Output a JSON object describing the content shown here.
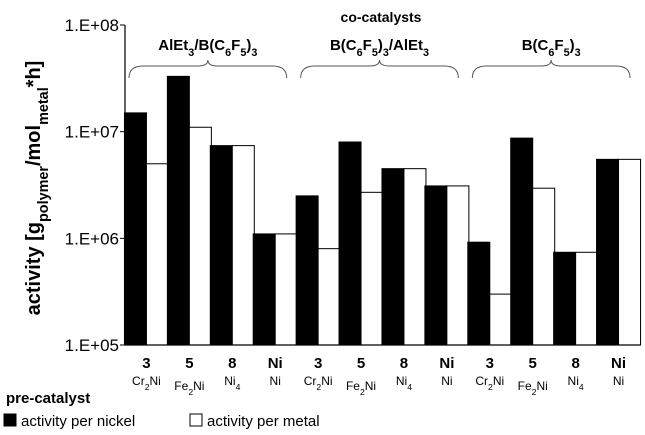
{
  "chart_data": {
    "type": "bar",
    "scale": "log",
    "ylim": [
      100000,
      100000000
    ],
    "y_ticks": [
      "1.E+05",
      "1.E+06",
      "1.E+07",
      "1.E+08"
    ],
    "ylabel": "activity [gpolymer/molmetal*h]",
    "ylabel_parts": {
      "main": "activity [g",
      "sub1": "polymer",
      "mid": "/mol",
      "sub2": "metal",
      "end": "*h]"
    },
    "cocatalyst_title": "co-catalysts",
    "groups": [
      {
        "label_parts": [
          "AlEt",
          "3",
          "/B(C",
          "6",
          "F",
          "5",
          ")",
          "3"
        ]
      },
      {
        "label_parts": [
          "B(C",
          "6",
          "F",
          "5",
          ")",
          "3",
          "/AlEt",
          "3"
        ]
      },
      {
        "label_parts": [
          "B(C",
          "6",
          "F",
          "5",
          ")",
          "3"
        ]
      }
    ],
    "precatalyst_label": "pre-catalyst",
    "categories": [
      {
        "id": "3",
        "base": "Cr",
        "sub": "2",
        "tail": "Ni"
      },
      {
        "id": "5",
        "base": "Fe",
        "sub": "2",
        "tail": "Ni"
      },
      {
        "id": "8",
        "base": "Ni",
        "sub": "4",
        "tail": ""
      },
      {
        "id": "Ni",
        "base": "Ni",
        "sub": "",
        "tail": ""
      },
      {
        "id": "3",
        "base": "Cr",
        "sub": "2",
        "tail": "Ni"
      },
      {
        "id": "5",
        "base": "Fe",
        "sub": "2",
        "tail": "Ni"
      },
      {
        "id": "8",
        "base": "Ni",
        "sub": "4",
        "tail": ""
      },
      {
        "id": "Ni",
        "base": "Ni",
        "sub": "",
        "tail": ""
      },
      {
        "id": "3",
        "base": "Cr",
        "sub": "2",
        "tail": "Ni"
      },
      {
        "id": "5",
        "base": "Fe",
        "sub": "2",
        "tail": "Ni"
      },
      {
        "id": "8",
        "base": "Ni",
        "sub": "4",
        "tail": ""
      },
      {
        "id": "Ni",
        "base": "Ni",
        "sub": "",
        "tail": ""
      }
    ],
    "series": [
      {
        "name": "activity per nickel",
        "color": "#000000",
        "values": [
          15000000,
          33000000,
          7400000,
          1100000,
          2500000,
          8000000,
          4500000,
          3100000,
          920000,
          8700000,
          740000,
          5500000
        ]
      },
      {
        "name": "activity per metal",
        "color": "#ffffff",
        "values": [
          5000000,
          11000000,
          7400000,
          1100000,
          800000,
          2700000,
          4500000,
          3100000,
          300000,
          2950000,
          740000,
          5500000
        ]
      }
    ],
    "legend_position": "bottom-left",
    "grid": false
  }
}
